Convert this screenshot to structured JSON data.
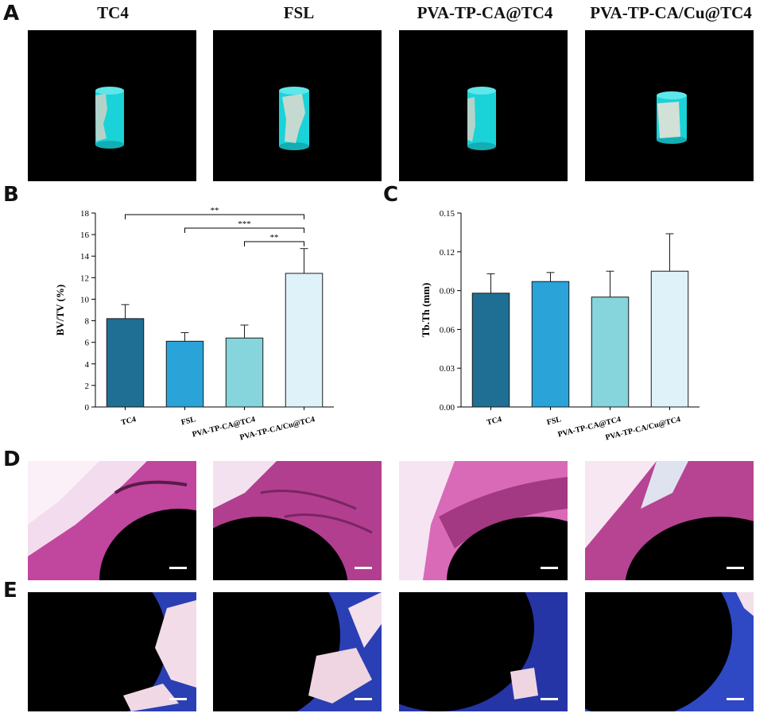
{
  "panels": {
    "a": "A",
    "b": "B",
    "c": "C",
    "d": "D",
    "e": "E"
  },
  "groups": [
    "TC4",
    "FSL",
    "PVA-TP-CA@TC4",
    "PVA-TP-CA/Cu@TC4"
  ],
  "colors": {
    "bar_fills": [
      "#1f6f94",
      "#2aa3d9",
      "#86d4dc",
      "#dff2fa"
    ],
    "cylinder": "#19d3d8",
    "he_stain": "#c0469e",
    "masson_stain": "#2a3fb4"
  },
  "chart_data": [
    {
      "type": "bar",
      "categories": [
        "TC4",
        "FSL",
        "PVA-TP-CA@TC4",
        "PVA-TP-CA/Cu@TC4"
      ],
      "values": [
        8.2,
        6.1,
        6.4,
        12.4
      ],
      "errors": [
        1.3,
        0.8,
        1.2,
        2.3
      ],
      "ylabel": "BV/TV (%)",
      "xlabel": "",
      "ylim": [
        0,
        18
      ],
      "yticks": [
        "0",
        "2",
        "4",
        "6",
        "8",
        "10",
        "12",
        "14",
        "16",
        "18"
      ],
      "significance": [
        {
          "from": 0,
          "to": 3,
          "label": "**"
        },
        {
          "from": 1,
          "to": 3,
          "label": "***"
        },
        {
          "from": 2,
          "to": 3,
          "label": "**"
        }
      ]
    },
    {
      "type": "bar",
      "categories": [
        "TC4",
        "FSL",
        "PVA-TP-CA@TC4",
        "PVA-TP-CA/Cu@TC4"
      ],
      "values": [
        0.088,
        0.097,
        0.085,
        0.105
      ],
      "errors": [
        0.015,
        0.007,
        0.02,
        0.029
      ],
      "ylabel": "Tb.Th (mm)",
      "xlabel": "",
      "ylim": [
        0,
        0.15
      ],
      "yticks": [
        "0.00",
        "0.03",
        "0.06",
        "0.09",
        "0.12",
        "0.15"
      ],
      "significance": []
    }
  ]
}
